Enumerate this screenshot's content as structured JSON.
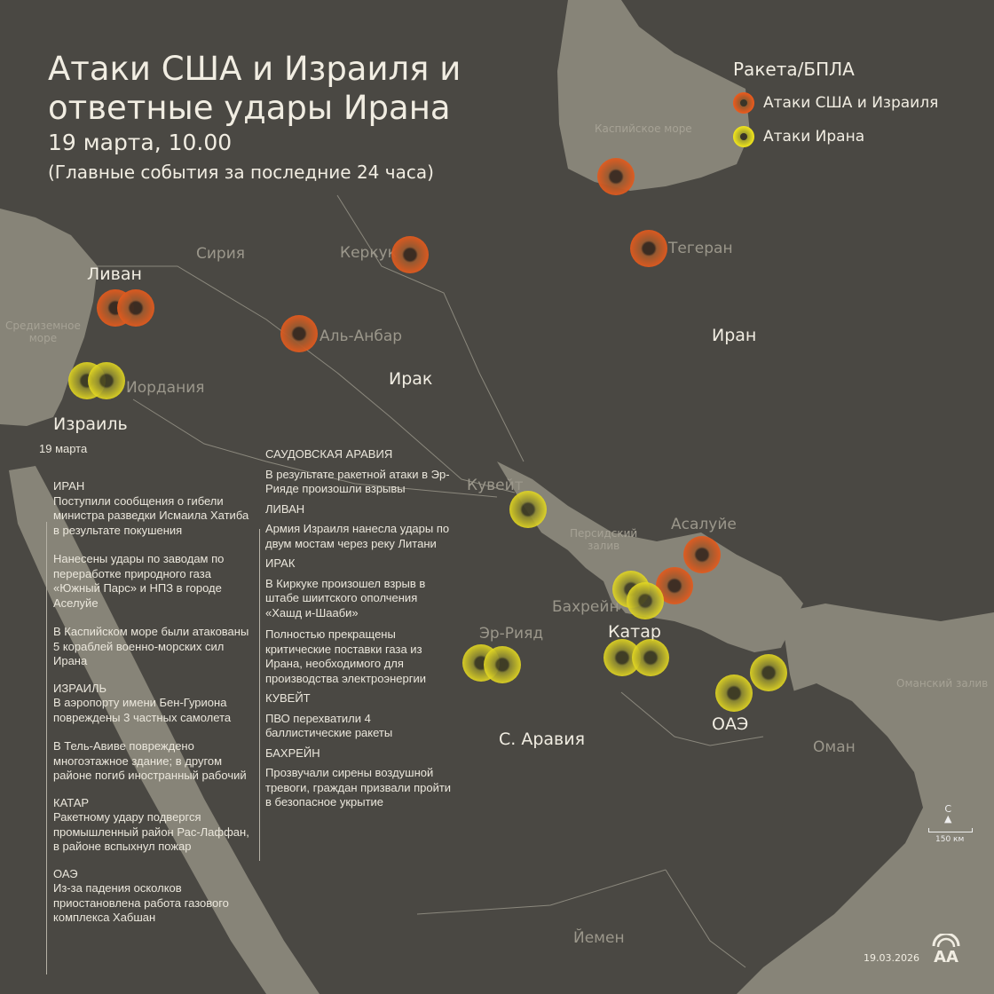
{
  "header": {
    "title_line1": "Атаки США и Израиля и",
    "title_line2": "ответные удары Ирана",
    "date": "19 марта, 10.00",
    "subtitle": "(Главные события за последние 24 часа)"
  },
  "legend": {
    "title": "Ракета/БПЛА",
    "items": [
      {
        "label": "Атаки США и Израиля",
        "color": "#ee5a1c"
      },
      {
        "label": "Атаки Ирана",
        "color": "#f2e61c"
      }
    ]
  },
  "map_labels": {
    "caspian": "Каспийское море",
    "med_1": "Средиземное",
    "med_2": "море",
    "persian_1": "Персидский",
    "persian_2": "залив",
    "oman_gulf": "Оманский залив",
    "syria": "Сирия",
    "lebanon": "Ливан",
    "jordan": "Иордания",
    "israel": "Израиль",
    "iraq": "Ирак",
    "iran": "Иран",
    "kirkuk": "Керкук",
    "anbar": "Аль-Анбар",
    "tehran": "Тегеран",
    "kuwait": "Кувейт",
    "asaluyeh": "Асалуйе",
    "bahrain": "Бахрейн",
    "qatar": "Катар",
    "riyadh": "Эр-Рияд",
    "saudi": "С. Аравия",
    "uae": "ОАЭ",
    "oman": "Оман",
    "yemen": "Йемен"
  },
  "markers": {
    "us_israel": [
      "Каспийское море",
      "Тегеран",
      "Керкук",
      "Аль-Анбар",
      "Ливан",
      "Ливан",
      "Асалуйе",
      "Асалуйе"
    ],
    "iran": [
      "Израиль",
      "Израиль",
      "Кувейт",
      "Бахрейн",
      "Бахрейн",
      "Эр-Рияд",
      "Эр-Рияд",
      "Катар",
      "Катар",
      "ОАЭ",
      "ОАЭ"
    ]
  },
  "events": {
    "date": "19 марта",
    "col1": [
      {
        "heading": "ИРАН",
        "paragraphs": [
          "Поступили сообщения о гибели министра разведки Исмаила Хатиба в результате покушения",
          "Нанесены удары по заводам по переработке природного газа «Южный Парс» и НПЗ в городе Аселуйе",
          "В Каспийском море были атакованы 5 кораблей военно-морских сил Ирана"
        ]
      },
      {
        "heading": "ИЗРАИЛЬ",
        "paragraphs": [
          "В аэропорту имени Бен-Гуриона повреждены 3 частных самолета",
          "В Тель-Авиве повреждено многоэтажное здание; в другом районе погиб иностранный рабочий"
        ]
      },
      {
        "heading": "КАТАР",
        "paragraphs": [
          "Ракетному удару подвергся промышленный район Рас-Лаффан, в районе вспыхнул пожар"
        ]
      },
      {
        "heading": "ОАЭ",
        "paragraphs": [
          "Из-за падения осколков приостановлена работа газового комплекса Хабшан"
        ]
      }
    ],
    "col2": [
      {
        "heading": "САУДОВСКАЯ АРАВИЯ",
        "paragraphs": [
          "В результате ракетной атаки в Эр-Рияде произошли взрывы"
        ]
      },
      {
        "heading": "ЛИВАН",
        "paragraphs": [
          "Армия Израиля нанесла удары по двум мостам через реку Литани"
        ]
      },
      {
        "heading": "ИРАК",
        "paragraphs": [
          "В Киркуке произошел взрыв в штабе шиитского ополчения «Хашд и-Шааби»",
          "Полностью прекращены критические поставки газа из Ирана, необходимого для производства электроэнергии"
        ]
      },
      {
        "heading": "КУВЕЙТ",
        "paragraphs": [
          "ПВО перехватили 4 баллистические ракеты"
        ]
      },
      {
        "heading": "БАХРЕЙН",
        "paragraphs": [
          "Прозвучали сирены воздушной тревоги, граждан призвали пройти в безопасное укрытие"
        ]
      }
    ]
  },
  "scale": {
    "north": "С",
    "distance": "150 км"
  },
  "footer": {
    "date": "19.03.2026",
    "logo": "AA"
  },
  "colors": {
    "land": "#4a4843",
    "water": "#878478",
    "text": "#f1ede2"
  }
}
